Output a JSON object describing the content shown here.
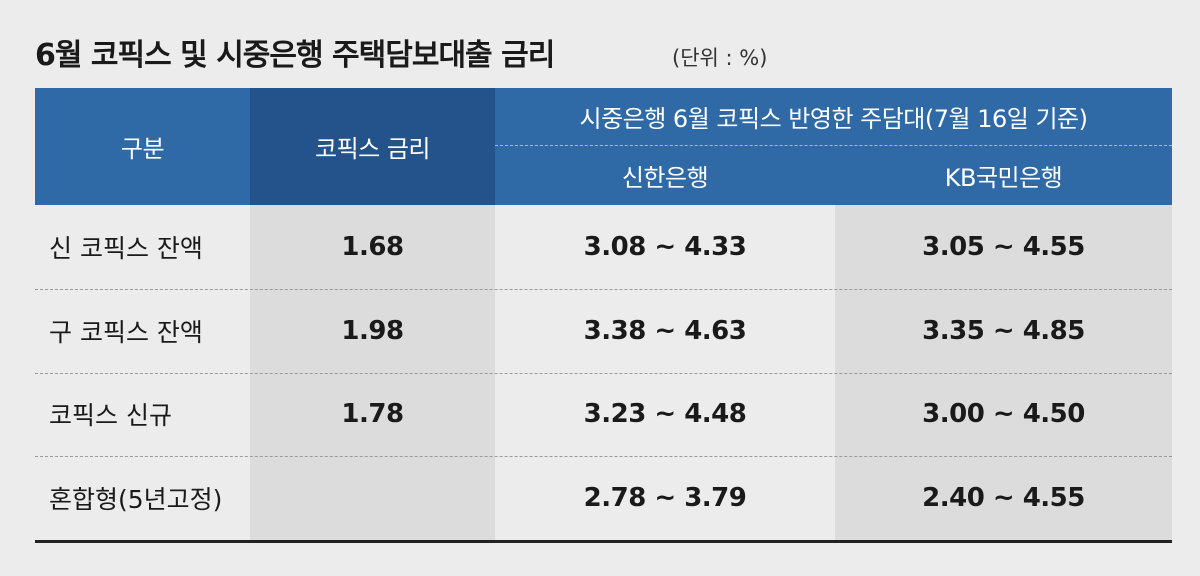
{
  "header": {
    "title": "6월 코픽스 및 시중은행 주택담보대출 금리",
    "unit": "(단위 : %)"
  },
  "table": {
    "columns": [
      "구분",
      "코픽스 금리",
      "시중은행 6월 코픽스 반영한 주담대(7월 16일 기준)"
    ],
    "subcolumns": [
      "신한은행",
      "KB국민은행"
    ],
    "rows": [
      [
        "신 코픽스 잔액",
        "1.68",
        "3.08 ~ 4.33",
        "3.05 ~ 4.55"
      ],
      [
        "구 코픽스 잔액",
        "1.98",
        "3.38 ~ 4.63",
        "3.35 ~ 4.85"
      ],
      [
        "코픽스 신규",
        "1.78",
        "3.23 ~ 4.48",
        "3.00 ~ 4.50"
      ],
      [
        "혼합형(5년고정)",
        null,
        "2.78 ~ 3.79",
        "2.40 ~ 4.55"
      ]
    ]
  }
}
